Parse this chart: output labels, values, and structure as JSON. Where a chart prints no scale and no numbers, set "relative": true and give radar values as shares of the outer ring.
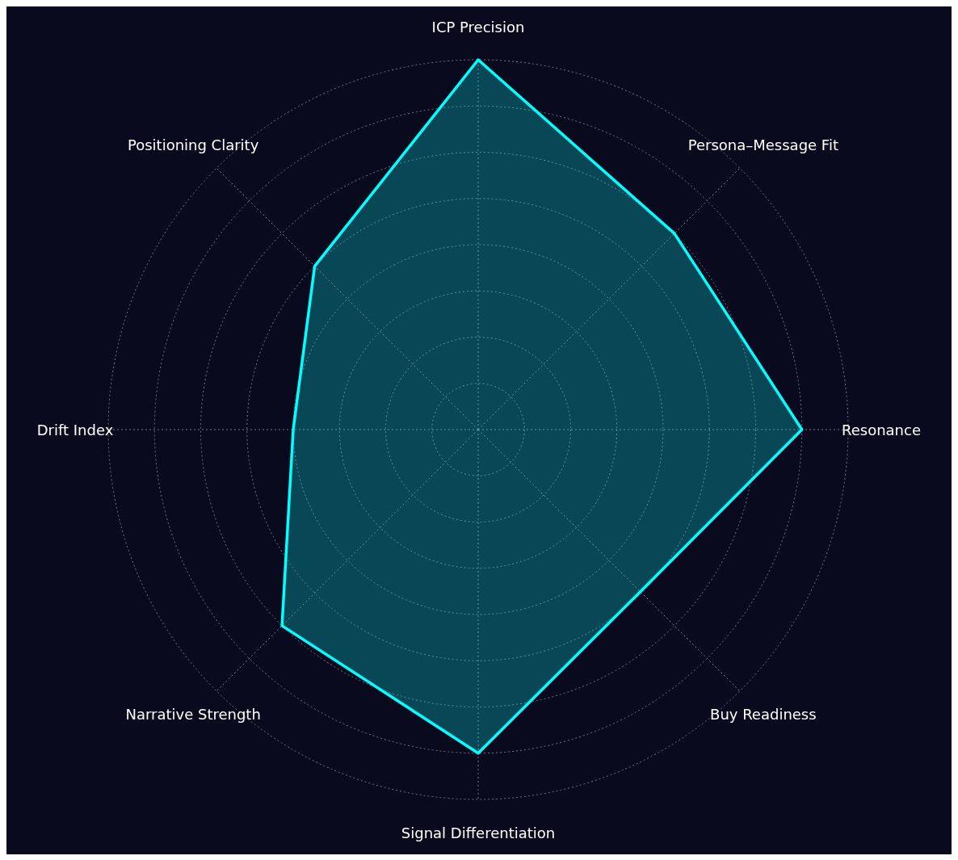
{
  "chart_data": {
    "type": "radar",
    "relative": true,
    "grid": true,
    "line_style": "solid",
    "marker": "none",
    "categories": [
      "ICP Precision",
      "Persona–Message Fit",
      "Resonance",
      "Buy Readiness",
      "Signal Differentiation",
      "Narrative Strength",
      "Drift Index",
      "Positioning Clarity"
    ],
    "series": [
      {
        "color": "#00ffff",
        "values": [
          1.0,
          0.75,
          0.875,
          0.62,
          0.875,
          0.75,
          0.5,
          0.625
        ]
      }
    ]
  }
}
